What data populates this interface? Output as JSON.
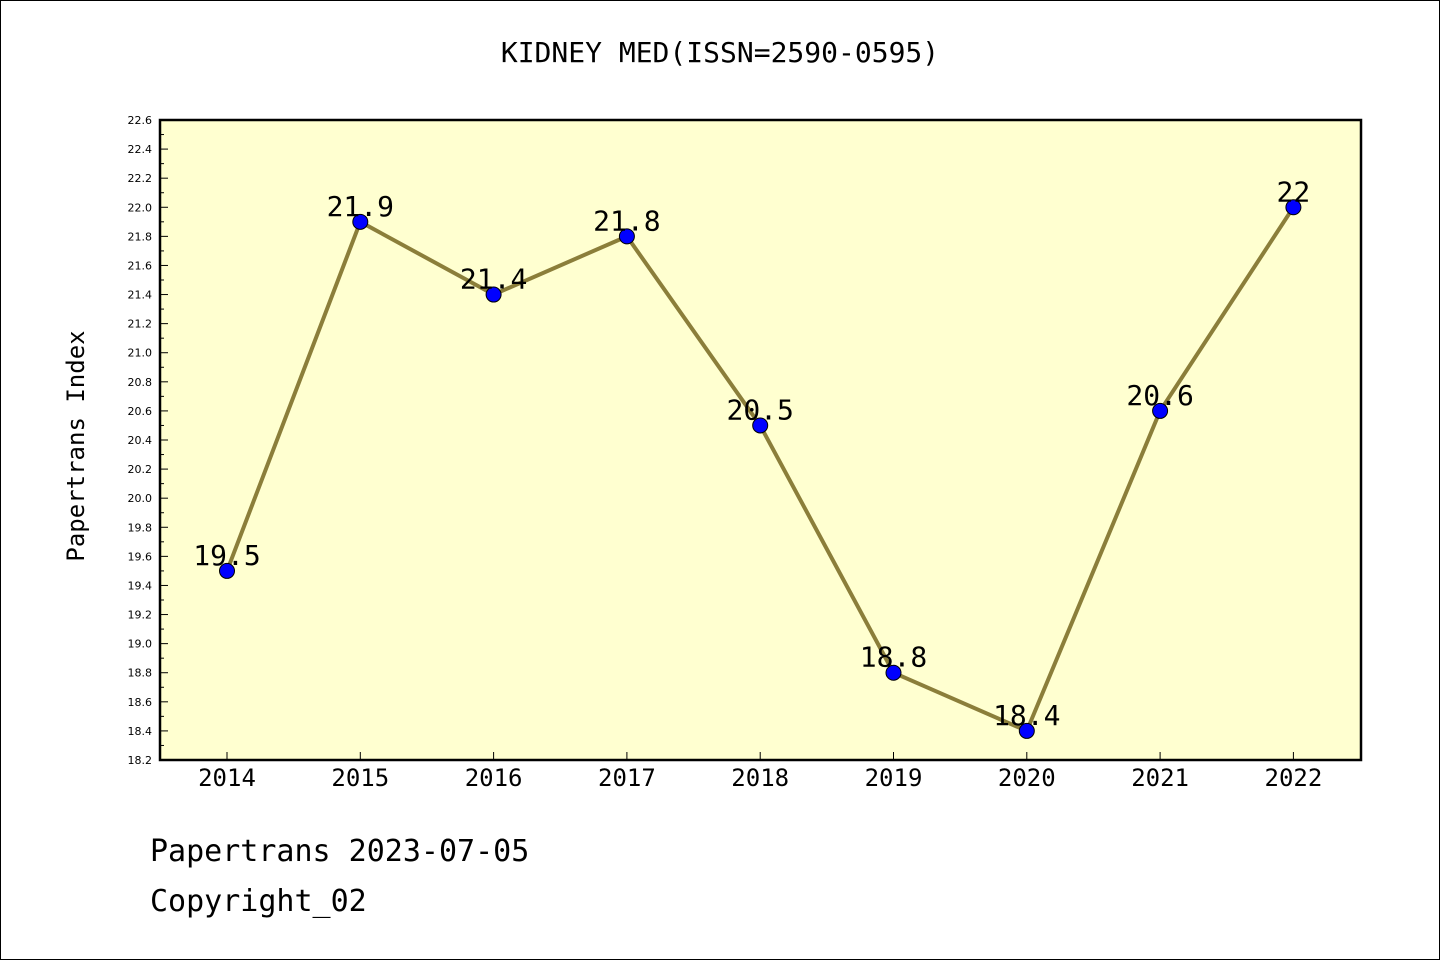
{
  "chart_data": {
    "type": "line",
    "title": "KIDNEY MED(ISSN=2590-0595)",
    "ylabel": "Papertrans Index",
    "xlabel": "",
    "categories": [
      "2014",
      "2015",
      "2016",
      "2017",
      "2018",
      "2019",
      "2020",
      "2021",
      "2022"
    ],
    "series": [
      {
        "values": [
          19.5,
          21.9,
          21.4,
          21.8,
          20.5,
          18.8,
          18.4,
          20.6,
          22.0
        ],
        "labels": [
          "19.5",
          "21.9",
          "21.4",
          "21.8",
          "20.5",
          "18.8",
          "18.4",
          "20.6",
          "22"
        ]
      }
    ],
    "ylim": [
      18.2,
      22.6
    ],
    "yticks": [
      "18.2",
      "18.4",
      "18.6",
      "18.8",
      "19.0",
      "19.2",
      "19.4",
      "19.6",
      "19.8",
      "20.0",
      "20.2",
      "20.4",
      "20.6",
      "20.8",
      "21.0",
      "21.2",
      "21.4",
      "21.6",
      "21.8",
      "22.0",
      "22.2",
      "22.4",
      "22.6"
    ],
    "grid": false,
    "legend": "none",
    "colors": {
      "plot_background": "#ffffd0",
      "line": "#8b7e3a",
      "marker": "#0000ff"
    }
  },
  "footer": {
    "date_text": "Papertrans 2023-07-05",
    "copyright_text": "Copyright_02"
  }
}
